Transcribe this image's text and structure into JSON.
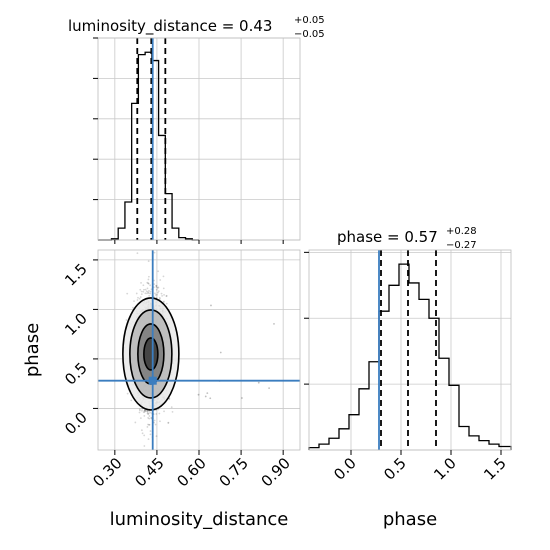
{
  "chart_data": {
    "type": "corner",
    "parameters": [
      "luminosity_distance",
      "phase"
    ],
    "truth_color": "#3b7dbf",
    "grid": true,
    "panels": [
      {
        "id": "hist-luminosity_distance",
        "type": "histogram",
        "param": "luminosity_distance",
        "title_prefix": "luminosity_distance = ",
        "title_value": "0.43",
        "title_plus": "+0.05",
        "title_minus": "−0.05",
        "xlim": [
          0.24,
          0.96
        ],
        "bin_edges": [
          0.24,
          0.264,
          0.288,
          0.312,
          0.336,
          0.36,
          0.384,
          0.408,
          0.432,
          0.456,
          0.48,
          0.504,
          0.528,
          0.552,
          0.576,
          0.6
        ],
        "counts": [
          0,
          0,
          1,
          10,
          32,
          115,
          156,
          158,
          151,
          88,
          39,
          10,
          2,
          1,
          0
        ],
        "ymax": 170,
        "quantiles": [
          0.38,
          0.43,
          0.48
        ],
        "truth": 0.435
      },
      {
        "id": "hist-phase",
        "type": "histogram",
        "param": "phase",
        "title_prefix": "phase = ",
        "title_value": "0.57",
        "title_plus": "+0.28",
        "title_minus": "−0.27",
        "xlim": [
          -0.42,
          1.6
        ],
        "bin_edges": [
          -0.42,
          -0.32,
          -0.22,
          -0.12,
          -0.02,
          0.08,
          0.18,
          0.28,
          0.38,
          0.48,
          0.58,
          0.68,
          0.78,
          0.88,
          0.98,
          1.08,
          1.18,
          1.28,
          1.38,
          1.48,
          1.6
        ],
        "counts": [
          2,
          5,
          10,
          18,
          30,
          52,
          75,
          118,
          140,
          158,
          142,
          128,
          112,
          78,
          55,
          20,
          12,
          8,
          5,
          3
        ],
        "ymax": 170,
        "quantiles": [
          0.3,
          0.57,
          0.85
        ],
        "truth": 0.28
      },
      {
        "id": "scatter-2d",
        "type": "contour2d",
        "x_param": "luminosity_distance",
        "y_param": "phase",
        "xlim": [
          0.24,
          0.96
        ],
        "ylim": [
          -0.42,
          1.6
        ],
        "center": [
          0.432,
          0.57
        ],
        "truth": [
          0.435,
          0.28
        ]
      }
    ],
    "axes": {
      "x_left": {
        "label": "luminosity_distance",
        "ticks": [
          0.3,
          0.45,
          0.6,
          0.75,
          0.9
        ],
        "tick_labels": [
          "0.30",
          "0.45",
          "0.60",
          "0.75",
          "0.90"
        ]
      },
      "x_right": {
        "label": "phase",
        "ticks": [
          0.0,
          0.5,
          1.0,
          1.5
        ],
        "tick_labels": [
          "0.0",
          "0.5",
          "1.0",
          "1.5"
        ]
      },
      "y_left": {
        "label": "phase",
        "ticks": [
          0.0,
          0.5,
          1.0,
          1.5
        ],
        "tick_labels": [
          "0.0",
          "0.5",
          "1.0",
          "1.5"
        ]
      }
    }
  }
}
